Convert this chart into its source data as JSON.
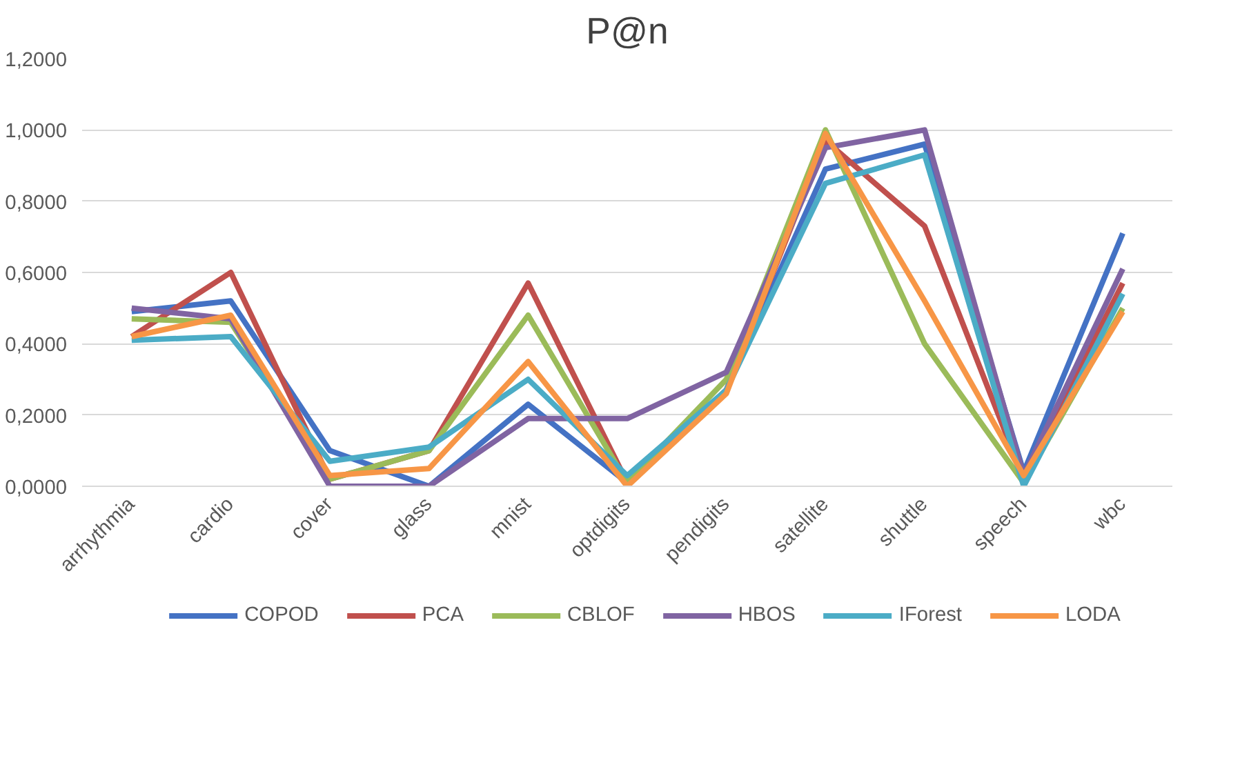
{
  "chart_data": {
    "type": "line",
    "title": "P@n",
    "categories": [
      "arrhythmia",
      "cardio",
      "cover",
      "glass",
      "mnist",
      "optdigits",
      "pendigits",
      "satellite",
      "shuttle",
      "speech",
      "wbc"
    ],
    "series": [
      {
        "name": "COPOD",
        "color": "#4472c4",
        "values": [
          0.49,
          0.52,
          0.1,
          0.0,
          0.23,
          0.01,
          0.27,
          0.89,
          0.96,
          0.04,
          0.71
        ]
      },
      {
        "name": "PCA",
        "color": "#c0504d",
        "values": [
          0.42,
          0.6,
          0.02,
          0.1,
          0.57,
          0.01,
          0.27,
          0.97,
          0.73,
          0.02,
          0.57
        ]
      },
      {
        "name": "CBLOF",
        "color": "#9bbb59",
        "values": [
          0.47,
          0.46,
          0.02,
          0.1,
          0.48,
          0.01,
          0.3,
          1.0,
          0.4,
          0.01,
          0.5
        ]
      },
      {
        "name": "HBOS",
        "color": "#8064a2",
        "values": [
          0.5,
          0.47,
          0.0,
          0.0,
          0.19,
          0.19,
          0.32,
          0.95,
          1.0,
          0.03,
          0.61
        ]
      },
      {
        "name": "IForest",
        "color": "#4bacc6",
        "values": [
          0.41,
          0.42,
          0.07,
          0.11,
          0.3,
          0.03,
          0.27,
          0.85,
          0.93,
          0.0,
          0.54
        ]
      },
      {
        "name": "LODA",
        "color": "#f79646",
        "values": [
          0.42,
          0.48,
          0.03,
          0.05,
          0.35,
          0.0,
          0.26,
          0.99,
          0.52,
          0.03,
          0.49
        ]
      }
    ],
    "ylim": [
      0,
      1.2
    ],
    "yticks": [
      {
        "value": 0,
        "label": "0,0000"
      },
      {
        "value": 0.2,
        "label": "0,2000"
      },
      {
        "value": 0.4,
        "label": "0,4000"
      },
      {
        "value": 0.6,
        "label": "0,6000"
      },
      {
        "value": 0.8,
        "label": "0,8000"
      },
      {
        "value": 1.0,
        "label": "1,0000"
      },
      {
        "value": 1.2,
        "label": "1,2000"
      }
    ],
    "grid": "y",
    "legend": "bottom",
    "line_style": "solid"
  }
}
